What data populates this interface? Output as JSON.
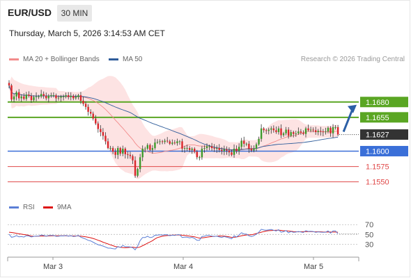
{
  "header": {
    "symbol": "EUR/USD",
    "timeframe": "30 MIN",
    "timestamp": "Thursday, March 5, 2026 3:14:53 AM CET"
  },
  "legend": {
    "ma20": {
      "label": "MA 20 + Bollinger Bands",
      "color": "#f28b8b"
    },
    "ma50": {
      "label": "MA 50",
      "color": "#2e5c9a"
    },
    "credit": "Research © 2026 Trading Central"
  },
  "rsi_legend": {
    "rsi": {
      "label": "RSI",
      "color": "#5b7fd6"
    },
    "ma9": {
      "label": "9MA",
      "color": "#dd1111"
    }
  },
  "chart_data": [
    {
      "type": "candlestick",
      "price_axis": {
        "range": [
          1.1527,
          1.1708
        ]
      },
      "levels": [
        {
          "value": 1.168,
          "label": "1.1680",
          "color": "#5aa623",
          "kind": "resistance"
        },
        {
          "value": 1.1655,
          "label": "1.1655",
          "color": "#5aa623",
          "kind": "resistance"
        },
        {
          "value": 1.16,
          "label": "1.1600",
          "color": "#3a6fd8",
          "kind": "pivot"
        },
        {
          "value": 1.1575,
          "label": "1.1575",
          "color": "#e04848",
          "kind": "support"
        },
        {
          "value": 1.155,
          "label": "1.1550",
          "color": "#e04848",
          "kind": "support"
        }
      ],
      "last_price": {
        "value": 1.1627,
        "label": "1.1627"
      },
      "target_arrow_to": 1.168,
      "x_labels": [
        "Mar 3",
        "Mar 4",
        "Mar 5"
      ],
      "closes": [
        1.1707,
        1.1684,
        1.1689,
        1.1696,
        1.1686,
        1.1689,
        1.1685,
        1.1692,
        1.169,
        1.1683,
        1.1688,
        1.1689,
        1.1689,
        1.1693,
        1.169,
        1.1686,
        1.169,
        1.1691,
        1.1691,
        1.1686,
        1.1687,
        1.1689,
        1.1689,
        1.1691,
        1.1688,
        1.169,
        1.1686,
        1.1688,
        1.1691,
        1.1682,
        1.1677,
        1.1672,
        1.1664,
        1.1661,
        1.1653,
        1.1645,
        1.1636,
        1.1631,
        1.1625,
        1.1616,
        1.1605,
        1.1605,
        1.1599,
        1.1594,
        1.1605,
        1.1596,
        1.1604,
        1.1595,
        1.1594,
        1.1592,
        1.1585,
        1.156,
        1.1571,
        1.159,
        1.1604,
        1.1604,
        1.161,
        1.1602,
        1.1605,
        1.1614,
        1.1615,
        1.1616,
        1.1615,
        1.1617,
        1.1616,
        1.1612,
        1.1614,
        1.1613,
        1.1616,
        1.1616,
        1.1604,
        1.1605,
        1.1605,
        1.1602,
        1.1604,
        1.1599,
        1.159,
        1.159,
        1.1604,
        1.1605,
        1.1608,
        1.1608,
        1.1605,
        1.1604,
        1.1605,
        1.1602,
        1.16,
        1.1603,
        1.1601,
        1.1598,
        1.1594,
        1.1604,
        1.16,
        1.1607,
        1.1617,
        1.1612,
        1.1612,
        1.1604,
        1.1601,
        1.1604,
        1.1611,
        1.162,
        1.1637,
        1.1634,
        1.1633,
        1.1635,
        1.1637,
        1.1634,
        1.1631,
        1.1637,
        1.1626,
        1.1629,
        1.1635,
        1.1625,
        1.1631,
        1.1628,
        1.1629,
        1.1632,
        1.163,
        1.1628,
        1.1637,
        1.1634,
        1.1635,
        1.1634,
        1.1631,
        1.1633,
        1.1632,
        1.1631,
        1.1632,
        1.1638,
        1.1629,
        1.1639,
        1.1639,
        1.1627
      ]
    },
    {
      "type": "line",
      "name": "RSI",
      "levels": [
        70,
        50,
        30
      ],
      "y_range": [
        12,
        86
      ],
      "rsi": [
        50.5,
        44.1,
        45.3,
        47.4,
        45.1,
        45.6,
        44.6,
        47.5,
        46.9,
        44.8,
        46.0,
        46.6,
        46.6,
        48.9,
        47.9,
        46.6,
        47.7,
        48.0,
        47.8,
        46.1,
        46.3,
        47.0,
        46.8,
        47.8,
        46.5,
        47.4,
        45.9,
        46.3,
        47.8,
        44.4,
        42.5,
        40.6,
        37.9,
        36.8,
        34.0,
        31.4,
        28.9,
        27.7,
        26.2,
        24.2,
        21.9,
        21.9,
        20.8,
        20.2,
        25.2,
        23.2,
        27.3,
        25.0,
        24.8,
        24.3,
        22.8,
        18.4,
        26.2,
        37.2,
        43.8,
        43.8,
        46.3,
        43.4,
        44.5,
        48.3,
        48.7,
        49.1,
        48.7,
        49.6,
        49.2,
        47.4,
        48.4,
        47.9,
        49.4,
        49.4,
        43.8,
        44.3,
        44.3,
        43.0,
        44.0,
        41.7,
        37.9,
        37.9,
        45.8,
        46.3,
        48.0,
        48.0,
        46.5,
        45.9,
        46.5,
        44.9,
        43.9,
        45.6,
        44.5,
        42.9,
        40.9,
        47.1,
        44.8,
        48.8,
        53.6,
        50.9,
        50.9,
        47.1,
        45.7,
        47.3,
        50.6,
        54.5,
        60.5,
        59.1,
        58.6,
        59.4,
        60.2,
        58.6,
        57.1,
        59.7,
        54.5,
        55.6,
        58.0,
        53.3,
        55.8,
        54.4,
        54.8,
        56.0,
        55.0,
        54.0,
        57.7,
        56.1,
        56.5,
        56.0,
        54.4,
        55.3,
        54.7,
        54.2,
        54.6,
        57.3,
        52.7,
        57.2,
        57.2,
        51.4
      ],
      "ma9": [
        54.6,
        54.0,
        53.2,
        52.3,
        51.3,
        50.5,
        49.7,
        49.1,
        48.2,
        46.4,
        46.2,
        46.3,
        46.5,
        46.7,
        46.9,
        46.6,
        46.9,
        47.0,
        47.2,
        47.2,
        47.3,
        47.3,
        47.1,
        47.1,
        46.9,
        47.0,
        46.8,
        46.9,
        46.8,
        46.4,
        45.9,
        45.2,
        44.2,
        43.1,
        41.7,
        40.0,
        38.0,
        36.3,
        34.1,
        32.4,
        30.5,
        28.7,
        26.9,
        25.3,
        24.7,
        23.7,
        23.1,
        22.7,
        23.1,
        23.6,
        23.9,
        23.0,
        23.0,
        24.4,
        27.0,
        29.4,
        32.2,
        34.5,
        37.2,
        40.8,
        43.6,
        44.9,
        46.3,
        47.1,
        47.7,
        48.2,
        48.6,
        48.7,
        48.9,
        49.0,
        48.3,
        47.8,
        47.2,
        46.5,
        45.8,
        45.1,
        43.8,
        42.4,
        43.0,
        43.5,
        44.4,
        45.2,
        45.6,
        46.0,
        46.3,
        46.8,
        46.7,
        46.4,
        45.9,
        45.1,
        43.9,
        44.2,
        44.7,
        45.8,
        47.1,
        48.1,
        48.9,
        49.1,
        49.3,
        50.4,
        51.9,
        53.0,
        54.5,
        55.9,
        57.0,
        57.7,
        57.9,
        58.2,
        58.5,
        58.5,
        58.2,
        57.6,
        57.6,
        57.0,
        56.5,
        55.9,
        55.6,
        55.3,
        55.5,
        55.6,
        55.8,
        56.0,
        55.8,
        55.6,
        55.4,
        55.5,
        55.4,
        55.0,
        54.9,
        55.1,
        54.9,
        54.9,
        54.9,
        54.5
      ]
    }
  ]
}
